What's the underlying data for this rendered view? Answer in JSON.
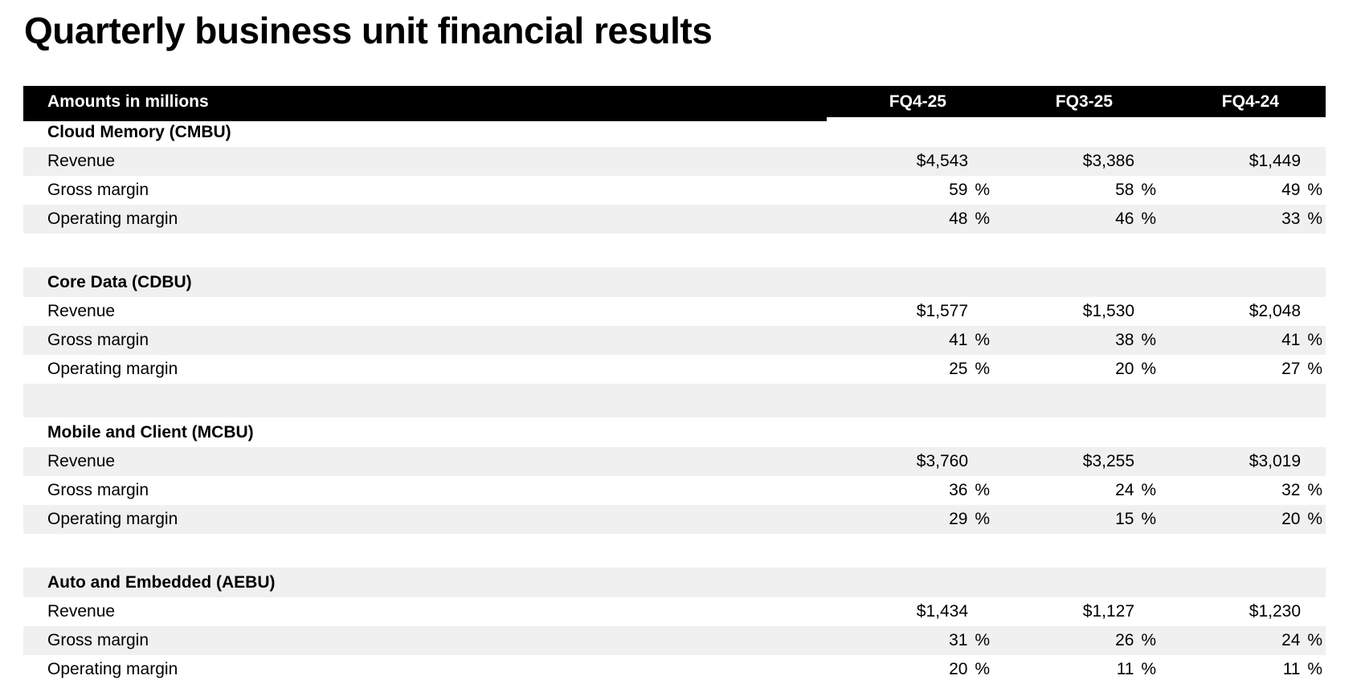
{
  "page_title": "Quarterly business unit financial results",
  "table": {
    "header": {
      "label_col": "Amounts in millions",
      "columns": [
        "FQ4-25",
        "FQ3-25",
        "FQ4-24"
      ]
    },
    "sections": [
      {
        "name": "Cloud Memory (CMBU)",
        "rows": [
          {
            "label": "Revenue",
            "values": [
              "$4,543",
              "$3,386",
              "$1,449"
            ]
          },
          {
            "label": "Gross margin",
            "values": [
              "59 %",
              "58 %",
              "49 %"
            ]
          },
          {
            "label": "Operating margin",
            "values": [
              "48 %",
              "46 %",
              "33 %"
            ]
          }
        ]
      },
      {
        "name": "Core Data (CDBU)",
        "rows": [
          {
            "label": "Revenue",
            "values": [
              "$1,577",
              "$1,530",
              "$2,048"
            ]
          },
          {
            "label": "Gross margin",
            "values": [
              "41 %",
              "38 %",
              "41 %"
            ]
          },
          {
            "label": "Operating margin",
            "values": [
              "25 %",
              "20 %",
              "27 %"
            ]
          }
        ]
      },
      {
        "name": "Mobile and Client (MCBU)",
        "rows": [
          {
            "label": "Revenue",
            "values": [
              "$3,760",
              "$3,255",
              "$3,019"
            ]
          },
          {
            "label": "Gross margin",
            "values": [
              "36 %",
              "24 %",
              "32 %"
            ]
          },
          {
            "label": "Operating margin",
            "values": [
              "29 %",
              "15 %",
              "20 %"
            ]
          }
        ]
      },
      {
        "name": "Auto and Embedded (AEBU)",
        "rows": [
          {
            "label": "Revenue",
            "values": [
              "$1,434",
              "$1,127",
              "$1,230"
            ]
          },
          {
            "label": "Gross margin",
            "values": [
              "31 %",
              "26 %",
              "24 %"
            ]
          },
          {
            "label": "Operating margin",
            "values": [
              "20 %",
              "11 %",
              "11 %"
            ]
          }
        ]
      }
    ],
    "colors": {
      "header_bar": "#000000",
      "header_text": "#ffffff",
      "stripe": "#f0f0f0",
      "text": "#000000"
    }
  }
}
